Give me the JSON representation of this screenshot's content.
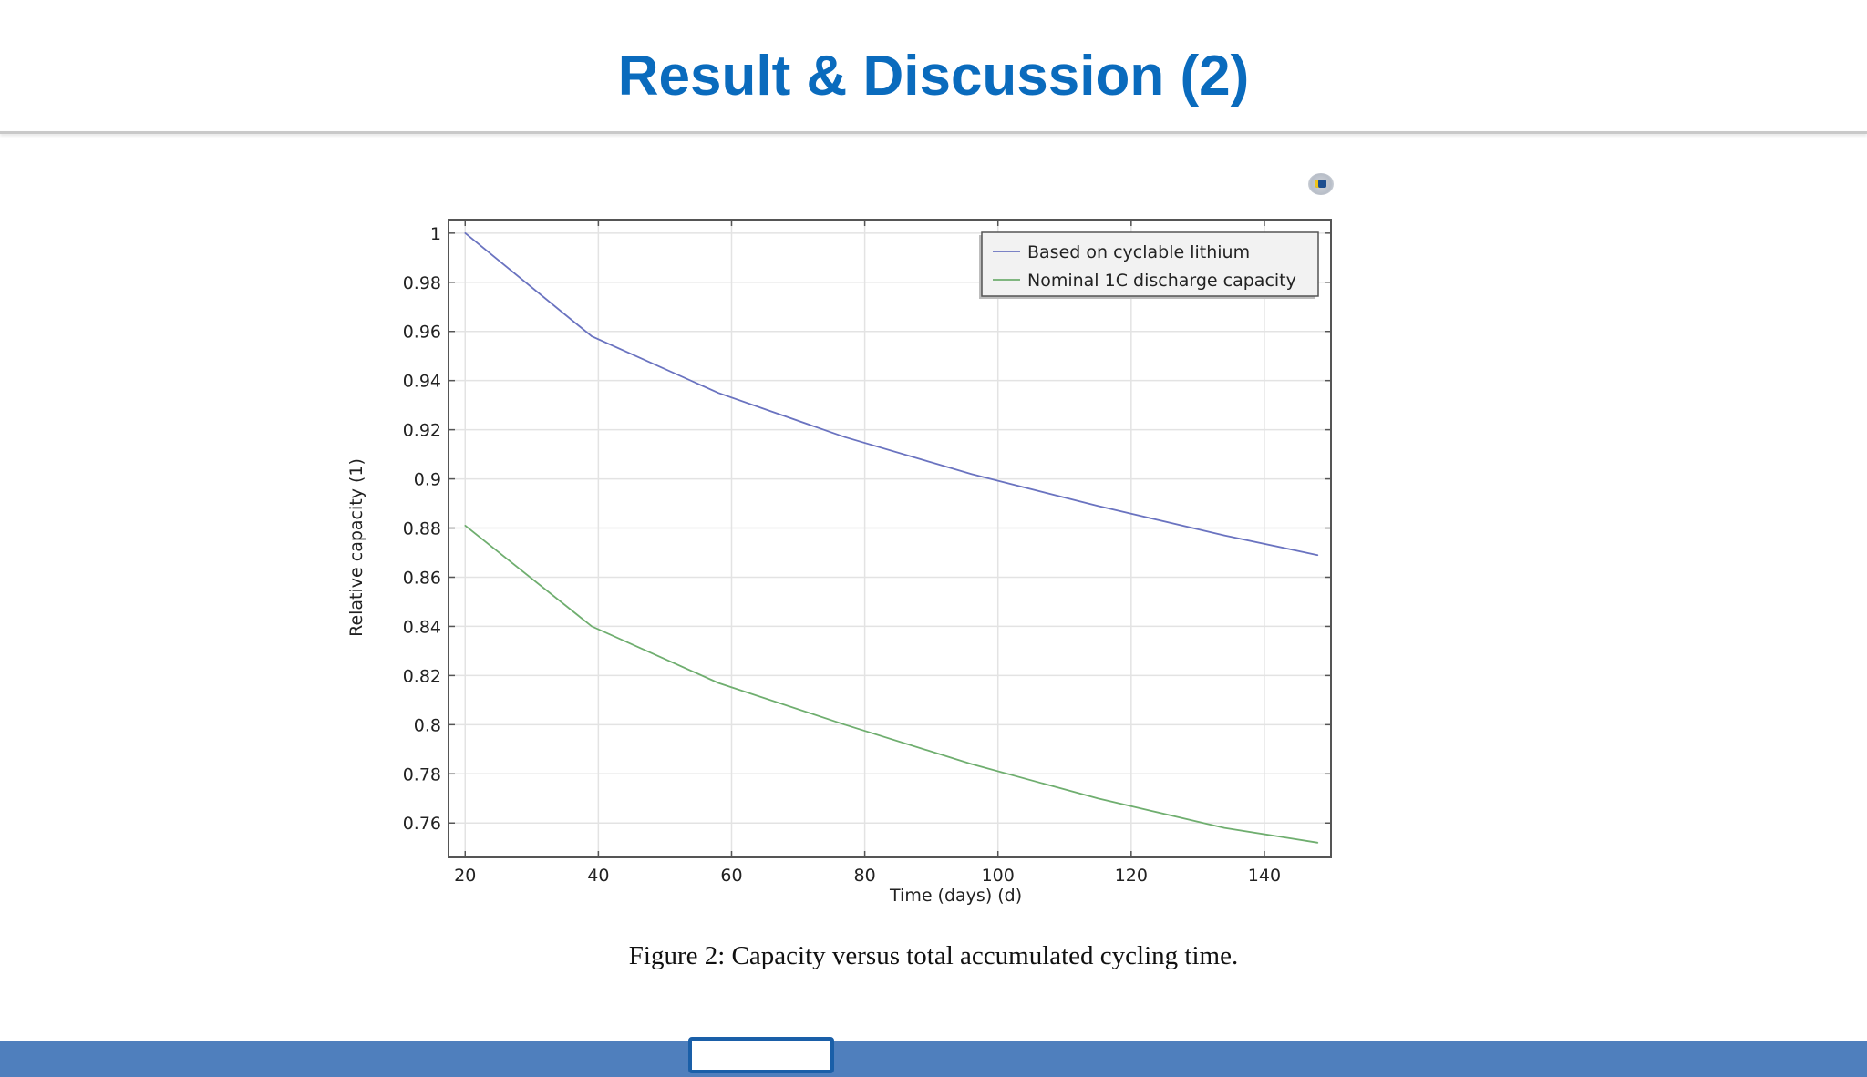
{
  "slide": {
    "title": "Result & Discussion (2)",
    "caption": "Figure 2: Capacity versus total accumulated cycling time."
  },
  "colors": {
    "title": "#0a6bbd",
    "series_blue": "#6a73c0",
    "series_green": "#6fae6f",
    "footer": "#4f7fbd"
  },
  "icons": {
    "corner": "app-logo-icon"
  },
  "chart_data": {
    "type": "line",
    "title": "",
    "xlabel": "Time (days) (d)",
    "ylabel": "Relative capacity (1)",
    "xlim": [
      17.5,
      150
    ],
    "ylim": [
      0.746,
      1.0055
    ],
    "x_ticks": [
      20,
      40,
      60,
      80,
      100,
      120,
      140
    ],
    "y_ticks": [
      1,
      0.98,
      0.96,
      0.94,
      0.92,
      0.9,
      0.88,
      0.86,
      0.84,
      0.82,
      0.8,
      0.78,
      0.76
    ],
    "y_tick_labels": [
      "1",
      "0.98",
      "0.96",
      "0.94",
      "0.92",
      "0.9",
      "0.88",
      "0.86",
      "0.84",
      "0.82",
      "0.8",
      "0.78",
      "0.76"
    ],
    "grid": true,
    "legend": "top-right",
    "series": [
      {
        "name": "Based on cyclable lithium",
        "color": "#6a73c0",
        "x": [
          20,
          39,
          58,
          77,
          96,
          115,
          134,
          148
        ],
        "y": [
          1.0,
          0.958,
          0.935,
          0.917,
          0.902,
          0.889,
          0.877,
          0.869
        ]
      },
      {
        "name": "Nominal 1C discharge capacity",
        "color": "#6fae6f",
        "x": [
          20,
          39,
          58,
          77,
          96,
          115,
          134,
          148
        ],
        "y": [
          0.881,
          0.84,
          0.817,
          0.8,
          0.784,
          0.77,
          0.758,
          0.752
        ]
      }
    ]
  }
}
